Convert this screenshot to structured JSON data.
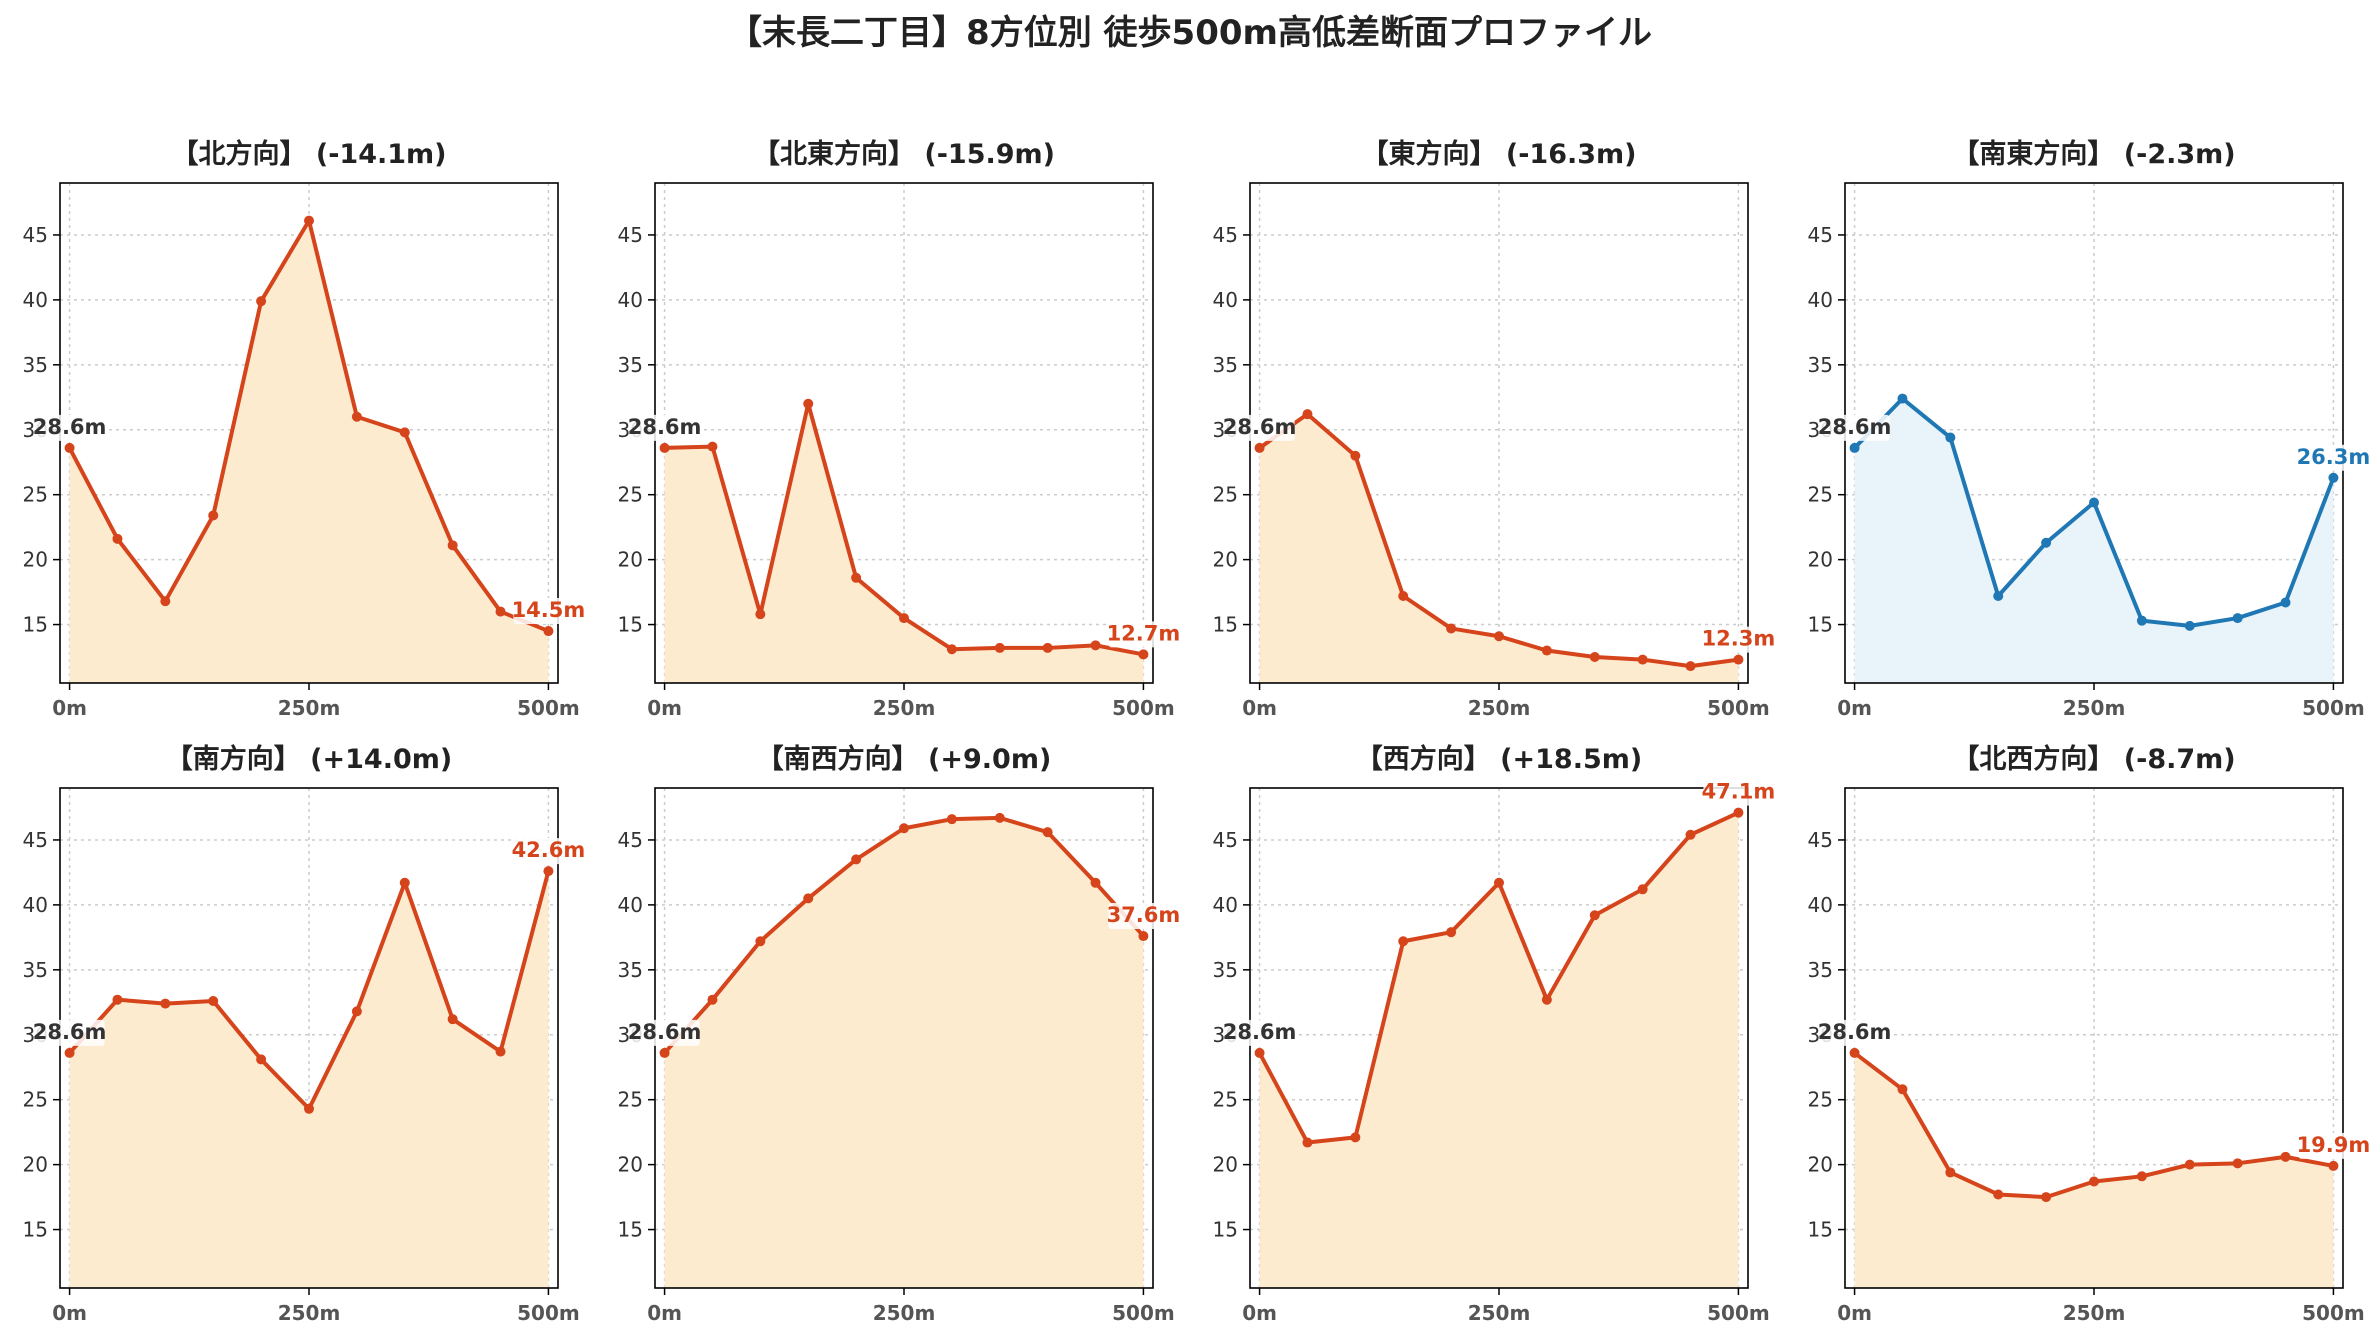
{
  "figure": {
    "title": "【末長二丁目】8方位別 徒歩500m高低差断面プロファイル"
  },
  "colors": {
    "descent_line": "#d5441a",
    "descent_fill": "#fdebd0",
    "ascent_line": "#d5441a",
    "ascent_fill": "#fdebd0",
    "flat_line": "#1f77b4",
    "flat_fill": "#e8f4fa",
    "start_label": "#333333",
    "grid": "#cccccc",
    "axes": "#000000"
  },
  "chart_data": [
    {
      "type": "area",
      "title": "【北方向】 (-14.1m)",
      "x": [
        0,
        50,
        100,
        150,
        200,
        250,
        300,
        350,
        400,
        450,
        500
      ],
      "values": [
        28.6,
        21.6,
        16.8,
        23.4,
        39.9,
        46.1,
        31.0,
        29.8,
        21.1,
        16.0,
        14.5
      ],
      "xticks": [
        "0m",
        "250m",
        "500m"
      ],
      "yticks": [
        15,
        20,
        25,
        30,
        35,
        40,
        45
      ],
      "ylim": [
        10.5,
        49
      ],
      "xlim": [
        -10,
        510
      ],
      "grid": true,
      "start_label": "28.6m",
      "end_label": "14.5m",
      "color": "descent"
    },
    {
      "type": "area",
      "title": "【北東方向】 (-15.9m)",
      "x": [
        0,
        50,
        100,
        150,
        200,
        250,
        300,
        350,
        400,
        450,
        500
      ],
      "values": [
        28.6,
        28.7,
        15.8,
        32.0,
        18.6,
        15.5,
        13.1,
        13.2,
        13.2,
        13.4,
        12.7
      ],
      "xticks": [
        "0m",
        "250m",
        "500m"
      ],
      "yticks": [
        15,
        20,
        25,
        30,
        35,
        40,
        45
      ],
      "ylim": [
        10.5,
        49
      ],
      "xlim": [
        -10,
        510
      ],
      "grid": true,
      "start_label": "28.6m",
      "end_label": "12.7m",
      "color": "descent"
    },
    {
      "type": "area",
      "title": "【東方向】 (-16.3m)",
      "x": [
        0,
        50,
        100,
        150,
        200,
        250,
        300,
        350,
        400,
        450,
        500
      ],
      "values": [
        28.6,
        31.2,
        28.0,
        17.2,
        14.7,
        14.1,
        13.0,
        12.5,
        12.3,
        11.8,
        12.3
      ],
      "xticks": [
        "0m",
        "250m",
        "500m"
      ],
      "yticks": [
        15,
        20,
        25,
        30,
        35,
        40,
        45
      ],
      "ylim": [
        10.5,
        49
      ],
      "xlim": [
        -10,
        510
      ],
      "grid": true,
      "start_label": "28.6m",
      "end_label": "12.3m",
      "color": "descent"
    },
    {
      "type": "area",
      "title": "【南東方向】 (-2.3m)",
      "x": [
        0,
        50,
        100,
        150,
        200,
        250,
        300,
        350,
        400,
        450,
        500
      ],
      "values": [
        28.6,
        32.4,
        29.4,
        17.2,
        21.3,
        24.4,
        15.3,
        14.9,
        15.5,
        16.7,
        26.3
      ],
      "xticks": [
        "0m",
        "250m",
        "500m"
      ],
      "yticks": [
        15,
        20,
        25,
        30,
        35,
        40,
        45
      ],
      "ylim": [
        10.5,
        49
      ],
      "xlim": [
        -10,
        510
      ],
      "grid": true,
      "start_label": "28.6m",
      "end_label": "26.3m",
      "color": "flat"
    },
    {
      "type": "area",
      "title": "【南方向】 (+14.0m)",
      "x": [
        0,
        50,
        100,
        150,
        200,
        250,
        300,
        350,
        400,
        450,
        500
      ],
      "values": [
        28.6,
        32.7,
        32.4,
        32.6,
        28.1,
        24.3,
        31.8,
        41.7,
        31.2,
        28.7,
        42.6
      ],
      "xticks": [
        "0m",
        "250m",
        "500m"
      ],
      "yticks": [
        15,
        20,
        25,
        30,
        35,
        40,
        45
      ],
      "ylim": [
        10.5,
        49
      ],
      "xlim": [
        -10,
        510
      ],
      "grid": true,
      "start_label": "28.6m",
      "end_label": "42.6m",
      "color": "ascent"
    },
    {
      "type": "area",
      "title": "【南西方向】 (+9.0m)",
      "x": [
        0,
        50,
        100,
        150,
        200,
        250,
        300,
        350,
        400,
        450,
        500
      ],
      "values": [
        28.6,
        32.7,
        37.2,
        40.5,
        43.5,
        45.9,
        46.6,
        46.7,
        45.6,
        41.7,
        37.6
      ],
      "xticks": [
        "0m",
        "250m",
        "500m"
      ],
      "yticks": [
        15,
        20,
        25,
        30,
        35,
        40,
        45
      ],
      "ylim": [
        10.5,
        49
      ],
      "xlim": [
        -10,
        510
      ],
      "grid": true,
      "start_label": "28.6m",
      "end_label": "37.6m",
      "color": "ascent"
    },
    {
      "type": "area",
      "title": "【西方向】 (+18.5m)",
      "x": [
        0,
        50,
        100,
        150,
        200,
        250,
        300,
        350,
        400,
        450,
        500
      ],
      "values": [
        28.6,
        21.7,
        22.1,
        37.2,
        37.9,
        41.7,
        32.7,
        39.2,
        41.2,
        45.4,
        47.1
      ],
      "xticks": [
        "0m",
        "250m",
        "500m"
      ],
      "yticks": [
        15,
        20,
        25,
        30,
        35,
        40,
        45
      ],
      "ylim": [
        10.5,
        49
      ],
      "xlim": [
        -10,
        510
      ],
      "grid": true,
      "start_label": "28.6m",
      "end_label": "47.1m",
      "color": "ascent"
    },
    {
      "type": "area",
      "title": "【北西方向】 (-8.7m)",
      "x": [
        0,
        50,
        100,
        150,
        200,
        250,
        300,
        350,
        400,
        450,
        500
      ],
      "values": [
        28.6,
        25.8,
        19.4,
        17.7,
        17.5,
        18.7,
        19.1,
        20.0,
        20.1,
        20.6,
        19.9
      ],
      "xticks": [
        "0m",
        "250m",
        "500m"
      ],
      "yticks": [
        15,
        20,
        25,
        30,
        35,
        40,
        45
      ],
      "ylim": [
        10.5,
        49
      ],
      "xlim": [
        -10,
        510
      ],
      "grid": true,
      "start_label": "28.6m",
      "end_label": "19.9m",
      "color": "descent"
    }
  ]
}
